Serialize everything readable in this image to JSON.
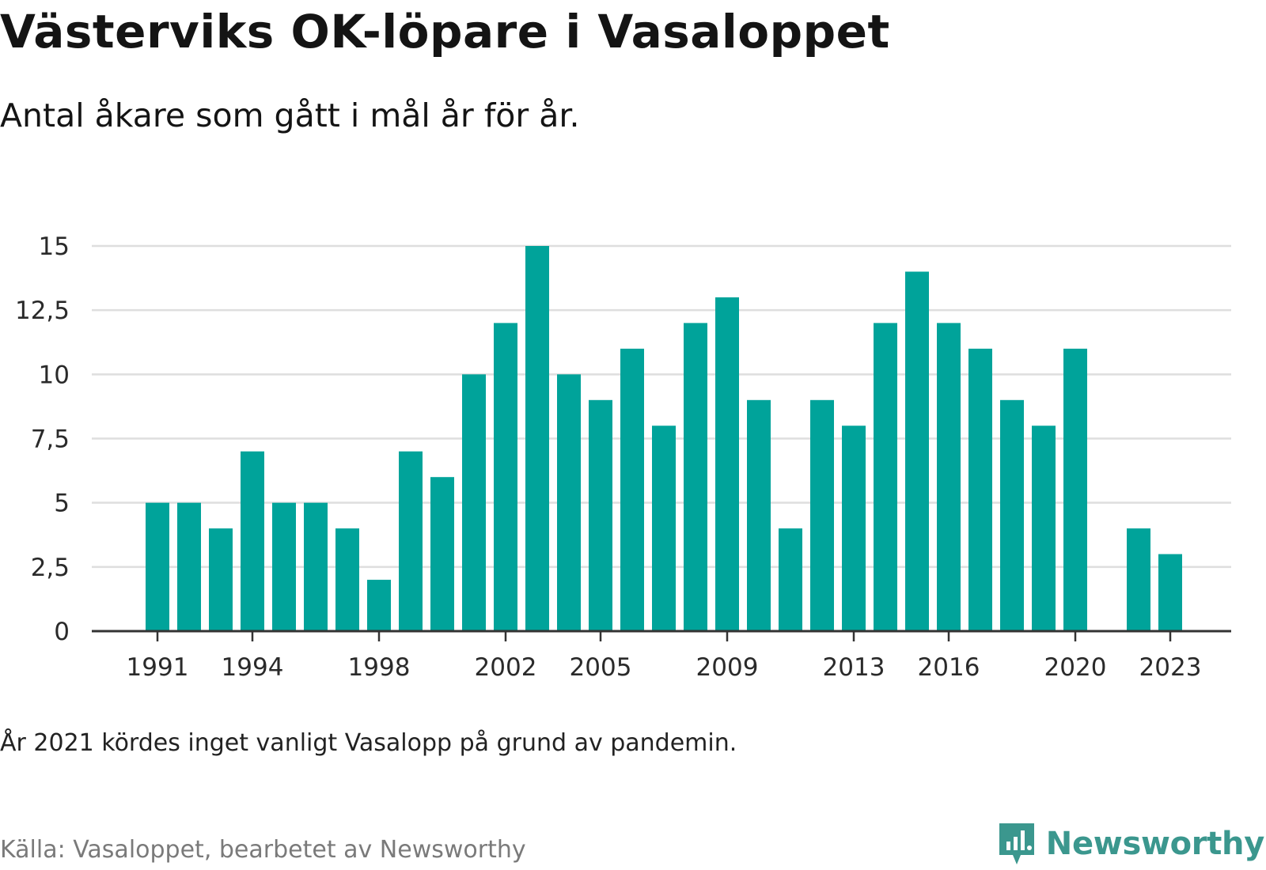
{
  "title": "Västerviks OK-löpare i Vasaloppet",
  "subtitle": "Antal åkare som gått i mål år för år.",
  "footnote": "År 2021 kördes inget vanligt Vasalopp på grund av pandemin.",
  "source": "Källa: Vasaloppet, bearbetet av Newsworthy",
  "brand": {
    "name": "Newsworthy",
    "icon": "newsworthy-logo-icon",
    "color": "#3b978e"
  },
  "chart_data": {
    "type": "bar",
    "categories": [
      "1991",
      "1992",
      "1993",
      "1994",
      "1995",
      "1996",
      "1997",
      "1998",
      "1999",
      "2000",
      "2001",
      "2002",
      "2003",
      "2004",
      "2005",
      "2006",
      "2007",
      "2008",
      "2009",
      "2010",
      "2011",
      "2012",
      "2013",
      "2014",
      "2015",
      "2016",
      "2017",
      "2018",
      "2019",
      "2020",
      "2021",
      "2022",
      "2023"
    ],
    "values": [
      5,
      5,
      4,
      7,
      5,
      5,
      4,
      2,
      7,
      6,
      10,
      12,
      15,
      10,
      9,
      11,
      8,
      12,
      13,
      9,
      4,
      9,
      8,
      12,
      14,
      12,
      11,
      9,
      8,
      11,
      null,
      4,
      3
    ],
    "x_tick_labels": [
      "1991",
      "1994",
      "1998",
      "2002",
      "2005",
      "2009",
      "2013",
      "2016",
      "2020",
      "2023"
    ],
    "y_ticks": [
      0,
      2.5,
      5,
      7.5,
      10,
      12.5,
      15
    ],
    "y_tick_labels": [
      "0",
      "2,5",
      "5",
      "7,5",
      "10",
      "12,5",
      "15"
    ],
    "ylim": [
      0,
      15
    ],
    "xlabel": "",
    "ylabel": "",
    "grid": true,
    "bar_color": "#00a39a"
  }
}
